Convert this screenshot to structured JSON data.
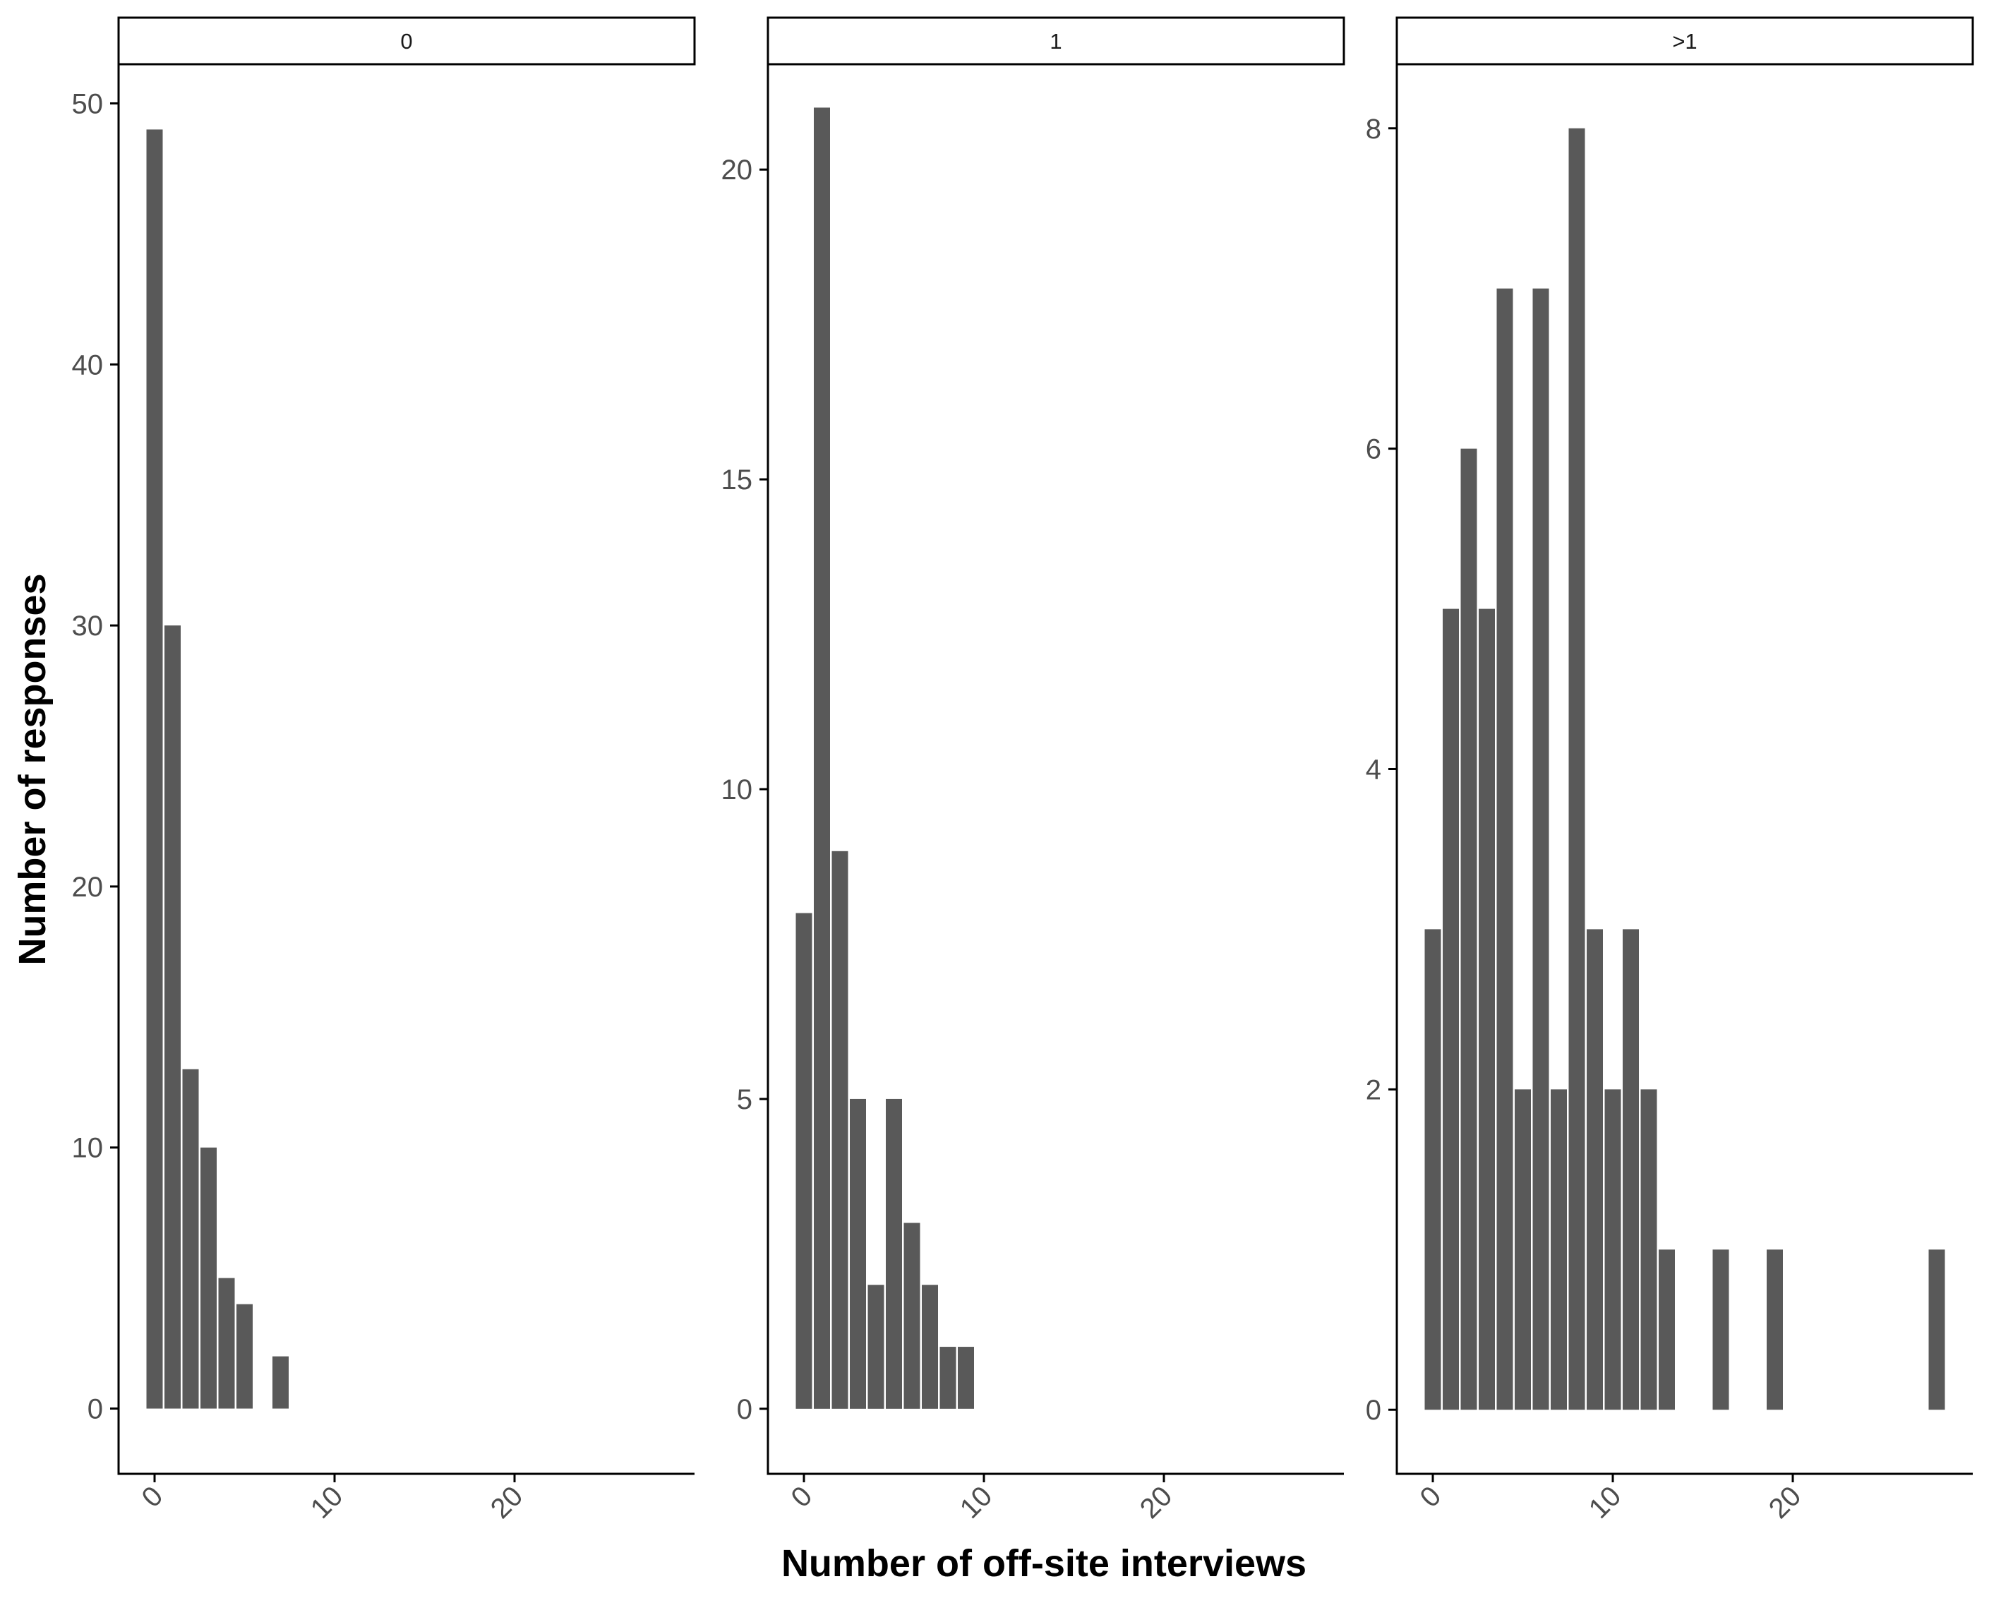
{
  "chart_data": {
    "type": "bar",
    "xlabel": "Number of off-site interviews",
    "ylabel": "Number of responses",
    "bar_color": "#595959",
    "axis_color": "#000000",
    "panels": [
      {
        "strip_label": "0",
        "xlim": [
          -2,
          30
        ],
        "ylim": [
          -2.5,
          51.5
        ],
        "yticks": [
          0,
          10,
          20,
          30,
          40,
          50
        ],
        "xticks": [
          0,
          10,
          20
        ],
        "x": [
          0,
          1,
          2,
          3,
          4,
          5,
          7
        ],
        "values": [
          49,
          30,
          13,
          10,
          5,
          4,
          2
        ]
      },
      {
        "strip_label": "1",
        "xlim": [
          -2,
          30
        ],
        "ylim": [
          -1.05,
          21.7
        ],
        "yticks": [
          0,
          5,
          10,
          15,
          20
        ],
        "xticks": [
          0,
          10,
          20
        ],
        "x": [
          0,
          1,
          2,
          3,
          4,
          5,
          6,
          7,
          8,
          9
        ],
        "values": [
          8,
          21,
          9,
          5,
          2,
          5,
          3,
          2,
          1,
          1
        ]
      },
      {
        "strip_label": ">1",
        "xlim": [
          -2,
          30
        ],
        "ylim": [
          -0.4,
          8.4
        ],
        "yticks": [
          0,
          2,
          4,
          6,
          8
        ],
        "xticks": [
          0,
          10,
          20
        ],
        "x": [
          0,
          1,
          2,
          3,
          4,
          5,
          6,
          7,
          8,
          9,
          10,
          11,
          12,
          13,
          16,
          19,
          28
        ],
        "values": [
          3,
          5,
          6,
          5,
          7,
          2,
          7,
          2,
          8,
          3,
          2,
          3,
          2,
          1,
          1,
          1,
          1
        ]
      }
    ]
  }
}
